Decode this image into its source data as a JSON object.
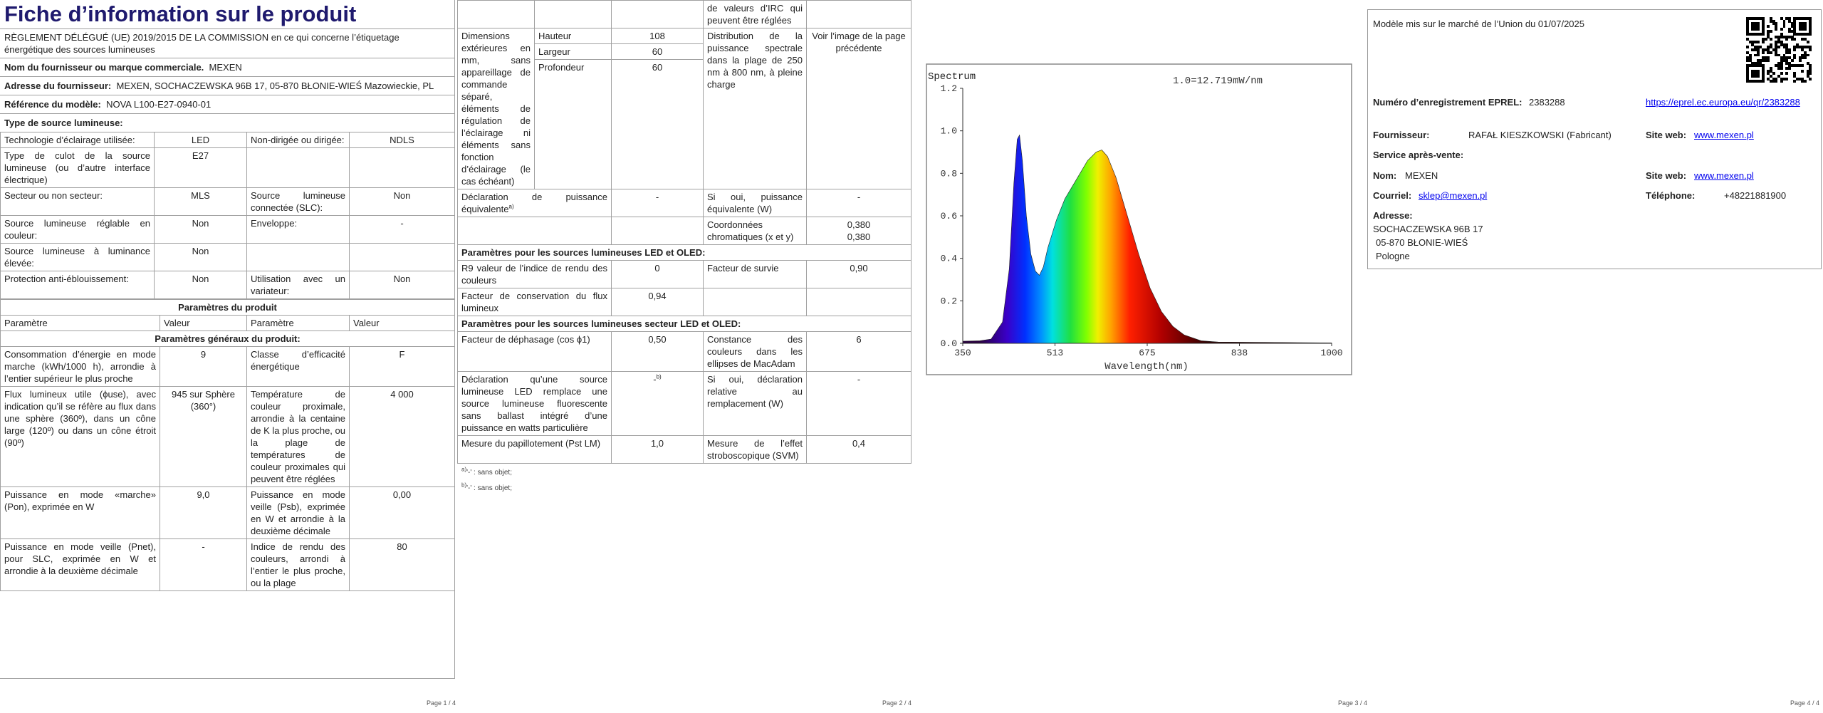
{
  "page1": {
    "title": "Fiche d’information sur le produit",
    "regulation": "RÈGLEMENT DÉLÉGUÉ (UE) 2019/2015 DE LA COMMISSION en ce qui concerne l’étiquetage énergétique des sources lumineuses",
    "info": [
      {
        "label": "Nom du fournisseur ou marque commerciale.",
        "value": "MEXEN"
      },
      {
        "label": "Adresse du fournisseur:",
        "value": "MEXEN, SOCHACZEWSKA 96B 17, 05-870 BŁONIE-WIEŚ Mazowieckie, PL"
      },
      {
        "label": "Référence du modèle:",
        "value": "NOVA L100-E27-0940-01"
      }
    ],
    "type_heading": "Type de source lumineuse:",
    "type_rows": [
      {
        "param": "Technologie d’éclairage utilisée:",
        "value": "LED",
        "param2": "Non-dirigée ou dirigée:",
        "value2": "NDLS"
      },
      {
        "param": "Type de culot de la source lumineuse (ou d’autre interface électrique)",
        "value": "E27"
      },
      {
        "param": "Secteur ou non secteur:",
        "value": "MLS",
        "param2": "Source lumineuse connectée (SLC):",
        "value2": "Non"
      },
      {
        "param": "Source lumineuse réglable en couleur:",
        "value": "Non",
        "param2": "Enveloppe:",
        "value2": "-"
      },
      {
        "param": "Source lumineuse à luminance élevée:",
        "value": "Non"
      },
      {
        "param": "Protection anti-éblouissement:",
        "value": "Non",
        "param2": "Utilisation avec un variateur:",
        "value2": "Non"
      }
    ],
    "params_heading": "Paramètres du produit",
    "params_header": [
      "Paramètre",
      "Valeur",
      "Paramètre",
      "Valeur"
    ],
    "general_heading": "Paramètres généraux du produit:",
    "params_rows": [
      {
        "param": "Consommation d’énergie en mode marche (kWh/1000 h), arrondie à l’entier supérieur le plus proche",
        "value": "9",
        "param2": "Classe d’efficacité énergétique",
        "value2": "F"
      },
      {
        "param": "Flux lumineux utile (ϕuse), avec indication qu’il se réfère au flux dans une sphère (360º), dans un cône large (120º) ou dans un cône étroit (90º)",
        "value": "945 sur Sphère (360°)",
        "param2": "Température de couleur proximale, arrondie à la centaine de K la plus proche, ou la plage de températures de couleur proximales qui peuvent être réglées",
        "value2": "4 000"
      },
      {
        "param": "Puissance en mode «marche» (Pon), exprimée en W",
        "value": "9,0",
        "param2": "Puissance en mode veille (Psb), exprimée en W et arrondie à la deuxième décimale",
        "value2": "0,00"
      },
      {
        "param": "Puissance en mode veille (Pnet), pour SLC, exprimée en W et arrondie à la deuxième décimale",
        "value": "-",
        "param2": "Indice de rendu des couleurs, arrondi à l’entier le plus proche, ou la plage",
        "value2": "80"
      }
    ],
    "footer": "Page 1 / 4"
  },
  "page2": {
    "continuation": "de valeurs d’IRC qui peuvent être réglées",
    "dimensions": {
      "label": "Dimensions extérieures en mm, sans appareillage de commande séparé, éléments de régulation de l’éclairage ni éléments sans fonction d’éclairage (le cas échéant)",
      "rows": [
        [
          "Hauteur",
          "108"
        ],
        [
          "Largeur",
          "60"
        ],
        [
          "Profondeur",
          "60"
        ]
      ],
      "spectral_label": "Distribution de la puissance spectrale dans la plage de 250 nm à 800 nm, à pleine charge",
      "spectral_value": "Voir l’image de la page précédente"
    },
    "rows_a": [
      {
        "param": "Déclaration de puissance équivalente",
        "note": "a)",
        "value": "-",
        "param2": "Si oui, puissance équivalente (W)",
        "value2": "-"
      },
      {
        "param2": "Coordonnées chromatiques (x et y)",
        "value2": [
          "0,380",
          "0,380"
        ]
      }
    ],
    "led_heading": "Paramètres pour les sources lumineuses LED et OLED:",
    "led_rows": [
      {
        "param": "R9 valeur de l’indice de rendu des couleurs",
        "value": "0",
        "param2": "Facteur de survie",
        "value2": "0,90"
      },
      {
        "param": "Facteur de conservation du flux lumineux",
        "value": "0,94"
      }
    ],
    "mains_heading": "Paramètres pour les sources lumineuses secteur LED et OLED:",
    "mains_rows": [
      {
        "param": "Facteur de déphasage (cos ϕ1)",
        "value": "0,50",
        "param2": "Constance des couleurs dans les ellipses de MacAdam",
        "value2": "6"
      },
      {
        "param": "Déclaration qu’une source lumineuse LED remplace une source lumineuse fluorescente sans ballast intégré d’une puissance en watts particulière",
        "value": "-",
        "value_note": "b)",
        "param2": "Si oui, déclaration relative au remplacement (W)",
        "value2": "-"
      },
      {
        "param": "Mesure du papillotement (Pst LM)",
        "value": "1,0",
        "param2": "Mesure de l’effet stroboscopique (SVM)",
        "value2": "0,4"
      }
    ],
    "notes": [
      {
        "mark": "a)",
        "text": "'-' : sans objet;"
      },
      {
        "mark": "b)",
        "text": "'-' : sans objet;"
      }
    ],
    "footer": "Page 2 / 4"
  },
  "page3": {
    "spectrum": {
      "title": "Spectrum",
      "scale": "1.0=12.719mW/nm",
      "xlabel": "Wavelength(nm)",
      "xticks": [
        "350",
        "513",
        "675",
        "838",
        "1000"
      ],
      "yticks": [
        "0.0",
        "0.2",
        "0.4",
        "0.6",
        "0.8",
        "1.0",
        "1.2"
      ]
    },
    "footer": "Page 3 / 4"
  },
  "page4": {
    "market": "Modèle mis sur le marché de l’Union du 01/07/2025",
    "eprel_label": "Numéro d’enregistrement EPREL:",
    "eprel_value": "2383288",
    "eprel_link": "https://eprel.ec.europa.eu/qr/2383288",
    "supplier_label": "Fournisseur:",
    "supplier_value": "RAFAŁ KIESZKOWSKI (Fabricant)",
    "web_label": "Site web:",
    "web_value": "www.mexen.pl",
    "service_heading": "Service après-vente:",
    "name_label": "Nom:",
    "name_value": "MEXEN",
    "web2_label": "Site web:",
    "web2_value": "www.mexen.pl",
    "email_label": "Courriel:",
    "email_value": "sklep@mexen.pl",
    "phone_label": "Téléphone:",
    "phone_value": "+48221881900",
    "address_label": "Adresse:",
    "address_lines": [
      "SOCHACZEWSKA 96B 17",
      "05-870 BŁONIE-WIEŚ",
      "Pologne"
    ],
    "footer": "Page 4 / 4"
  }
}
